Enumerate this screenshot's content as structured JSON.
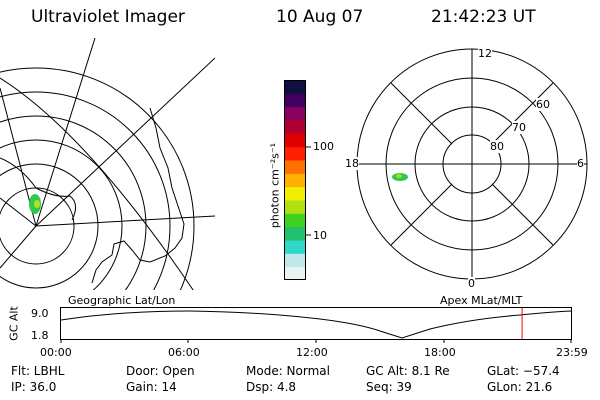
{
  "header": {
    "title": "Ultraviolet Imager",
    "date": "10 Aug 07",
    "time": "21:42:23 UT"
  },
  "left_map": {
    "caption": "Geographic Lat/Lon"
  },
  "right_map": {
    "caption": "Apex MLat/MLT",
    "mlt_labels": [
      "12",
      "18",
      "6",
      "0"
    ],
    "lat_labels": [
      "60",
      "70",
      "80"
    ]
  },
  "colorbar": {
    "unit_label": "photon cm⁻²s⁻¹",
    "ticks": [
      "100",
      "10"
    ],
    "colors": [
      "#e8f4f4",
      "#c0e8e8",
      "#30d8c8",
      "#20c070",
      "#40d020",
      "#b0e010",
      "#f0f000",
      "#ffb000",
      "#ff7000",
      "#ff2000",
      "#e00000",
      "#b00030",
      "#8c0060",
      "#400060",
      "#101040"
    ]
  },
  "timeline": {
    "y_label": "GC Alt",
    "y_ticks": [
      "9.0",
      "1.8"
    ],
    "x_ticks": [
      "00:00",
      "06:00",
      "12:00",
      "18:00",
      "23:59"
    ],
    "marker_color": "#ff0000",
    "marker_time_hours": 21.7
  },
  "info": {
    "filter": "Flt: LBHL",
    "ip": "IP: 36.0",
    "door": "Door: Open",
    "gain": "Gain: 14",
    "mode": "Mode: Normal",
    "dsp": "Dsp:   4.8",
    "gc_alt": "GC Alt: 8.1 Re",
    "seq": "Seq: 39",
    "glat": "GLat: −57.4",
    "glon": "GLon:  21.6"
  }
}
